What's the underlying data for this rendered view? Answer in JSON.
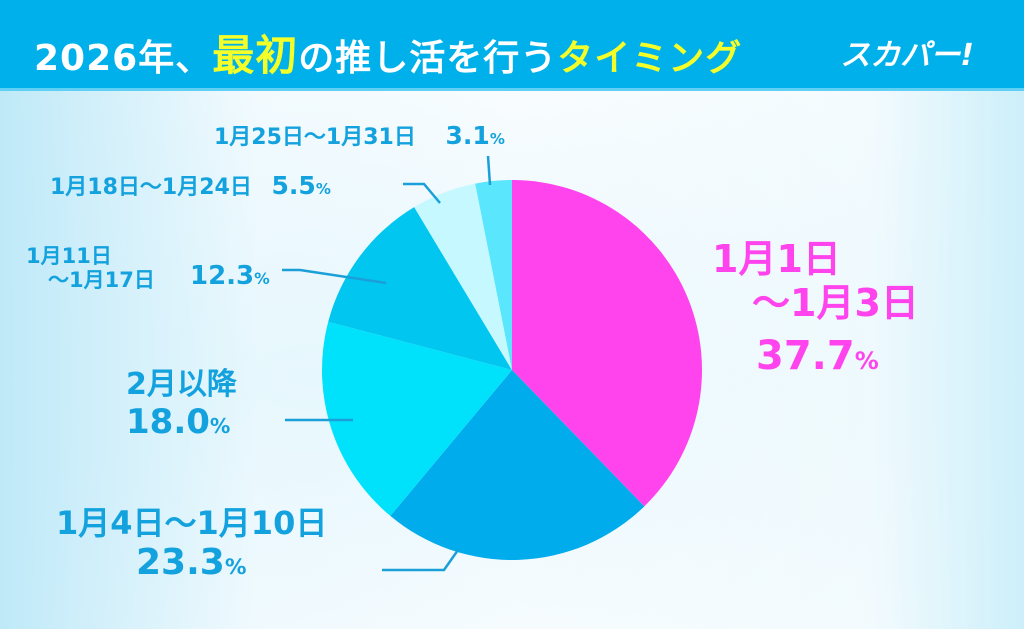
{
  "header": {
    "title_parts": [
      "2026年、",
      "最初",
      "の推し活を行う",
      "タイミング"
    ],
    "logo": "スカパー!"
  },
  "colors": {
    "header_bg": "#00b0ea",
    "title_highlight": "#f4ff2a",
    "label_text": "#13a2de",
    "accent": "#ff44ee"
  },
  "chart_data": {
    "type": "pie",
    "start": "top",
    "direction": "clockwise",
    "slices": [
      {
        "label_lines": [
          "1月1日",
          "～1月3日"
        ],
        "value": 37.7,
        "value_text": "37.7",
        "color": "#ff44ee"
      },
      {
        "label_lines": [
          "1月4日～1月10日"
        ],
        "value": 23.3,
        "value_text": "23.3",
        "color": "#00aceb"
      },
      {
        "label_lines": [
          "2月以降"
        ],
        "value": 18.0,
        "value_text": "18.0",
        "color": "#00e2fb"
      },
      {
        "label_lines": [
          "1月11日",
          "～1月17日"
        ],
        "value": 12.3,
        "value_text": "12.3",
        "color": "#00c6f0"
      },
      {
        "label_lines": [
          "1月18日～1月24日"
        ],
        "value": 5.5,
        "value_text": "5.5",
        "color": "#c6f8ff"
      },
      {
        "label_lines": [
          "1月25日～1月31日"
        ],
        "value": 3.1,
        "value_text": "3.1",
        "color": "#5ae6fc"
      }
    ],
    "unit": "%"
  }
}
